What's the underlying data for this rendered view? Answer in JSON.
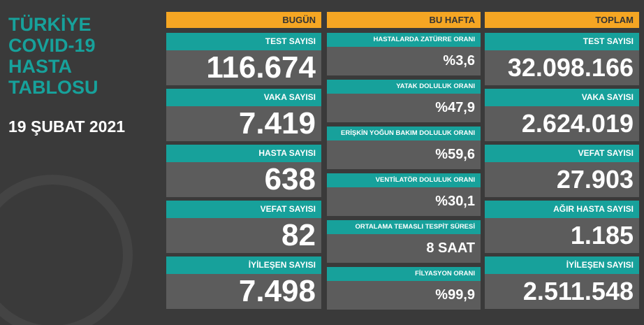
{
  "title": [
    "TÜRKİYE",
    "COVID-19",
    "HASTA",
    "TABLOSU"
  ],
  "date": "19 ŞUBAT 2021",
  "columns": [
    {
      "header": "BUGÜN",
      "items": [
        {
          "label": "TEST SAYISI",
          "value": "116.674"
        },
        {
          "label": "VAKA SAYISI",
          "value": "7.419"
        },
        {
          "label": "HASTA SAYISI",
          "value": "638"
        },
        {
          "label": "VEFAT SAYISI",
          "value": "82"
        },
        {
          "label": "İYİLEŞEN SAYISI",
          "value": "7.498"
        }
      ]
    },
    {
      "header": "BU HAFTA",
      "items": [
        {
          "label": "HASTALARDA ZATÜRRE ORANI",
          "value": "%3,6"
        },
        {
          "label": "YATAK DOLULUK ORANI",
          "value": "%47,9"
        },
        {
          "label": "ERİŞKİN YOĞUN BAKIM DOLULUK ORANI",
          "value": "%59,6"
        },
        {
          "label": "VENTİLATÖR DOLULUK ORANI",
          "value": "%30,1"
        },
        {
          "label": "ORTALAMA TEMASLI TESPİT SÜRESİ",
          "value": "8 SAAT"
        },
        {
          "label": "FİLYASYON ORANI",
          "value": "%99,9"
        }
      ]
    },
    {
      "header": "TOPLAM",
      "items": [
        {
          "label": "TEST SAYISI",
          "value": "32.098.166"
        },
        {
          "label": "VAKA SAYISI",
          "value": "2.624.019"
        },
        {
          "label": "VEFAT SAYISI",
          "value": "27.903"
        },
        {
          "label": "AĞIR HASTA SAYISI",
          "value": "1.185"
        },
        {
          "label": "İYİLEŞEN SAYISI",
          "value": "2.511.548"
        }
      ]
    }
  ]
}
